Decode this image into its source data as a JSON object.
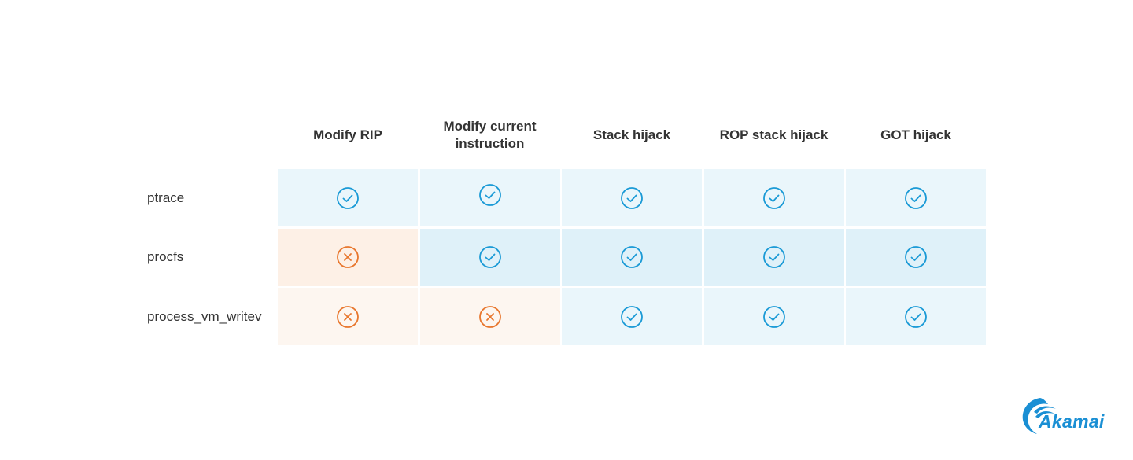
{
  "table": {
    "columns": [
      "Modify RIP",
      "Modify current instruction",
      "Stack hijack",
      "ROP stack hijack",
      "GOT hijack"
    ],
    "rows": [
      {
        "label": "ptrace",
        "cells": [
          true,
          true,
          true,
          true,
          true
        ]
      },
      {
        "label": "procfs",
        "cells": [
          false,
          true,
          true,
          true,
          true
        ]
      },
      {
        "label": "process_vm_writev",
        "cells": [
          false,
          false,
          true,
          true,
          true
        ]
      }
    ]
  },
  "logo": "Akamai"
}
